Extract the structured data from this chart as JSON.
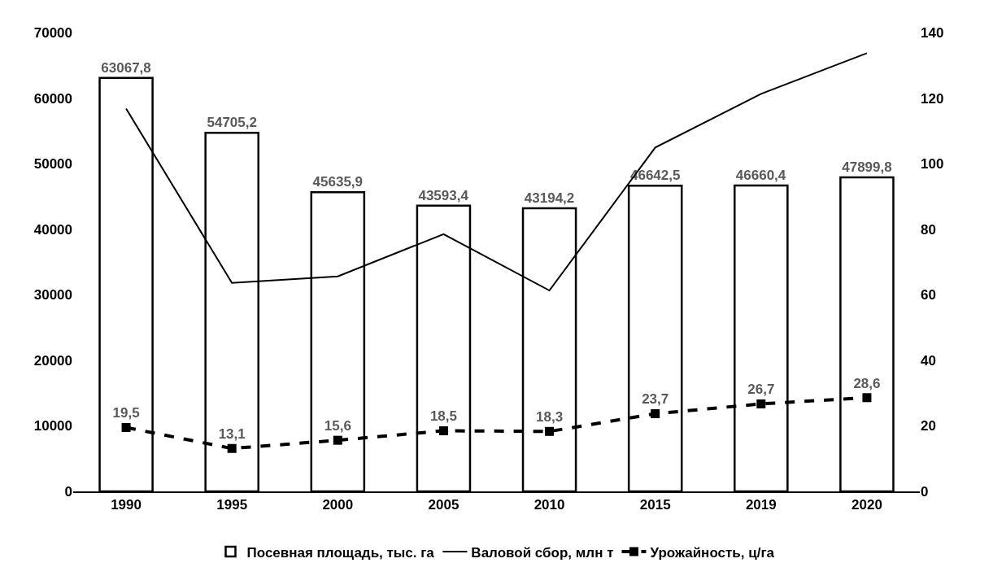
{
  "chart_data": {
    "type": "bar",
    "categories": [
      "1990",
      "1995",
      "2000",
      "2005",
      "2010",
      "2015",
      "2019",
      "2020"
    ],
    "series": [
      {
        "name": "Посевная площадь, тыс. га",
        "color": "#ffffff",
        "values": [
          63067.8,
          54705.2,
          45635.9,
          43593.4,
          43194.2,
          46642.5,
          46660.4,
          47899.8
        ],
        "value_labels": [
          "63067,8",
          "54705,2",
          "45635,9",
          "43593,4",
          "43194,2",
          "46642,5",
          "46660,4",
          "47899,8"
        ]
      },
      {
        "name": "Валовой сбор, млн т",
        "type": "line",
        "axis": "y2",
        "color": "#000000",
        "line_style": "solid",
        "marker": "none",
        "values": [
          116.8,
          63.6,
          65.6,
          78.5,
          61.3,
          104.9,
          121.3,
          133.7
        ]
      },
      {
        "name": "Урожайность, ц/га",
        "type": "line",
        "axis": "y2",
        "color": "#000000",
        "line_style": "dashed",
        "marker": "square",
        "values": [
          19.5,
          13.1,
          15.6,
          18.5,
          18.3,
          23.7,
          26.7,
          28.6
        ],
        "value_labels": [
          "19,5",
          "13,1",
          "15,6",
          "18,5",
          "18,3",
          "23,7",
          "26,7",
          "28,6"
        ]
      }
    ],
    "ylim": [
      0,
      70000
    ],
    "yticks": [
      0,
      10000,
      20000,
      30000,
      40000,
      50000,
      60000,
      70000
    ],
    "y2lim": [
      0,
      140
    ],
    "y2ticks": [
      0,
      20,
      40,
      60,
      80,
      100,
      120,
      140
    ],
    "legend": "bottom"
  }
}
